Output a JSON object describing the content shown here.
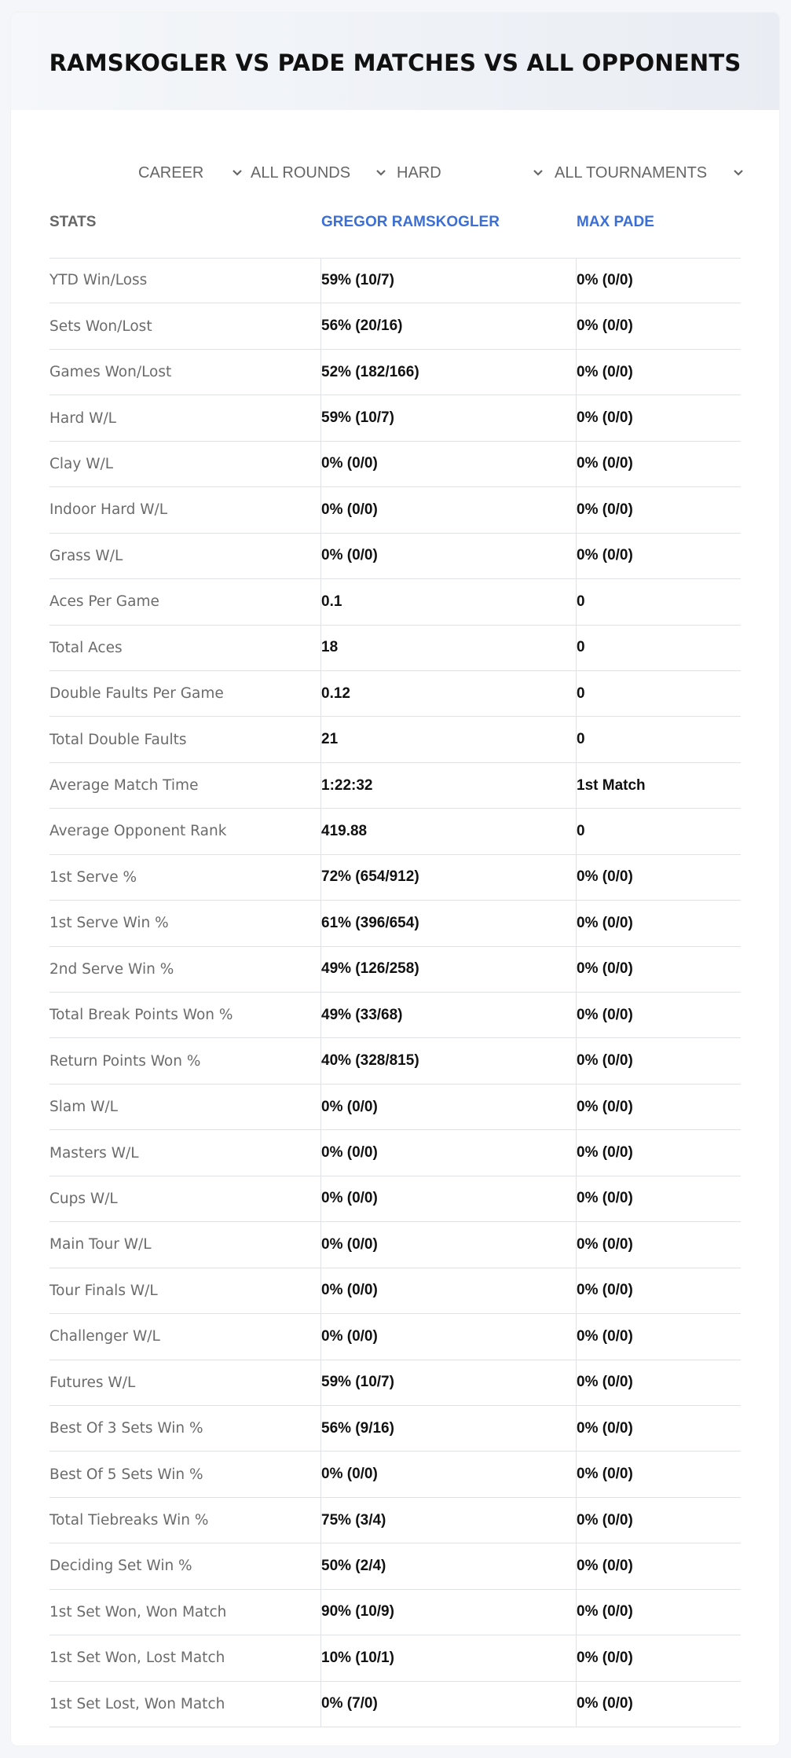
{
  "title": "RAMSKOGLER VS PADE MATCHES VS ALL OPPONENTS",
  "filters": [
    {
      "value": "CAREER",
      "icon": "chevron-down-icon"
    },
    {
      "value": "ALL ROUNDS",
      "icon": "chevron-down-icon"
    },
    {
      "value": "HARD",
      "icon": "chevron-down-icon"
    },
    {
      "value": "ALL TOURNAMENTS",
      "icon": "chevron-down-icon"
    }
  ],
  "columns": {
    "stats": "STATS",
    "player1": "GREGOR RAMSKOGLER",
    "player2": "MAX PADE"
  },
  "colors": {
    "accent": "#3c6fd6",
    "label": "#6b6b6b",
    "value": "#111111"
  },
  "rows": [
    {
      "label": "YTD Win/Loss",
      "p1": "59% (10/7)",
      "p2": "0% (0/0)"
    },
    {
      "label": "Sets Won/Lost",
      "p1": "56% (20/16)",
      "p2": "0% (0/0)"
    },
    {
      "label": "Games Won/Lost",
      "p1": "52% (182/166)",
      "p2": "0% (0/0)"
    },
    {
      "label": "Hard W/L",
      "p1": "59% (10/7)",
      "p2": "0% (0/0)"
    },
    {
      "label": "Clay W/L",
      "p1": "0% (0/0)",
      "p2": "0% (0/0)"
    },
    {
      "label": "Indoor Hard W/L",
      "p1": "0% (0/0)",
      "p2": "0% (0/0)"
    },
    {
      "label": "Grass W/L",
      "p1": "0% (0/0)",
      "p2": "0% (0/0)"
    },
    {
      "label": "Aces Per Game",
      "p1": "0.1",
      "p2": "0"
    },
    {
      "label": "Total Aces",
      "p1": "18",
      "p2": "0"
    },
    {
      "label": "Double Faults Per Game",
      "p1": "0.12",
      "p2": "0"
    },
    {
      "label": "Total Double Faults",
      "p1": "21",
      "p2": "0"
    },
    {
      "label": "Average Match Time",
      "p1": "1:22:32",
      "p2": "1st Match"
    },
    {
      "label": "Average Opponent Rank",
      "p1": "419.88",
      "p2": "0"
    },
    {
      "label": "1st Serve %",
      "p1": "72% (654/912)",
      "p2": "0% (0/0)"
    },
    {
      "label": "1st Serve Win %",
      "p1": "61% (396/654)",
      "p2": "0% (0/0)"
    },
    {
      "label": "2nd Serve Win %",
      "p1": "49% (126/258)",
      "p2": "0% (0/0)"
    },
    {
      "label": "Total Break Points Won %",
      "p1": "49% (33/68)",
      "p2": "0% (0/0)"
    },
    {
      "label": "Return Points Won %",
      "p1": "40% (328/815)",
      "p2": "0% (0/0)"
    },
    {
      "label": "Slam W/L",
      "p1": "0% (0/0)",
      "p2": "0% (0/0)"
    },
    {
      "label": "Masters W/L",
      "p1": "0% (0/0)",
      "p2": "0% (0/0)"
    },
    {
      "label": "Cups W/L",
      "p1": "0% (0/0)",
      "p2": "0% (0/0)"
    },
    {
      "label": "Main Tour W/L",
      "p1": "0% (0/0)",
      "p2": "0% (0/0)"
    },
    {
      "label": "Tour Finals W/L",
      "p1": "0% (0/0)",
      "p2": "0% (0/0)"
    },
    {
      "label": "Challenger W/L",
      "p1": "0% (0/0)",
      "p2": "0% (0/0)"
    },
    {
      "label": "Futures W/L",
      "p1": "59% (10/7)",
      "p2": "0% (0/0)"
    },
    {
      "label": "Best Of 3 Sets Win %",
      "p1": "56% (9/16)",
      "p2": "0% (0/0)"
    },
    {
      "label": "Best Of 5 Sets Win %",
      "p1": "0% (0/0)",
      "p2": "0% (0/0)"
    },
    {
      "label": "Total Tiebreaks Win %",
      "p1": "75% (3/4)",
      "p2": "0% (0/0)"
    },
    {
      "label": "Deciding Set Win %",
      "p1": "50% (2/4)",
      "p2": "0% (0/0)"
    },
    {
      "label": "1st Set Won, Won Match",
      "p1": "90% (10/9)",
      "p2": "0% (0/0)"
    },
    {
      "label": "1st Set Won, Lost Match",
      "p1": "10% (10/1)",
      "p2": "0% (0/0)"
    },
    {
      "label": "1st Set Lost, Won Match",
      "p1": "0% (7/0)",
      "p2": "0% (0/0)"
    }
  ]
}
